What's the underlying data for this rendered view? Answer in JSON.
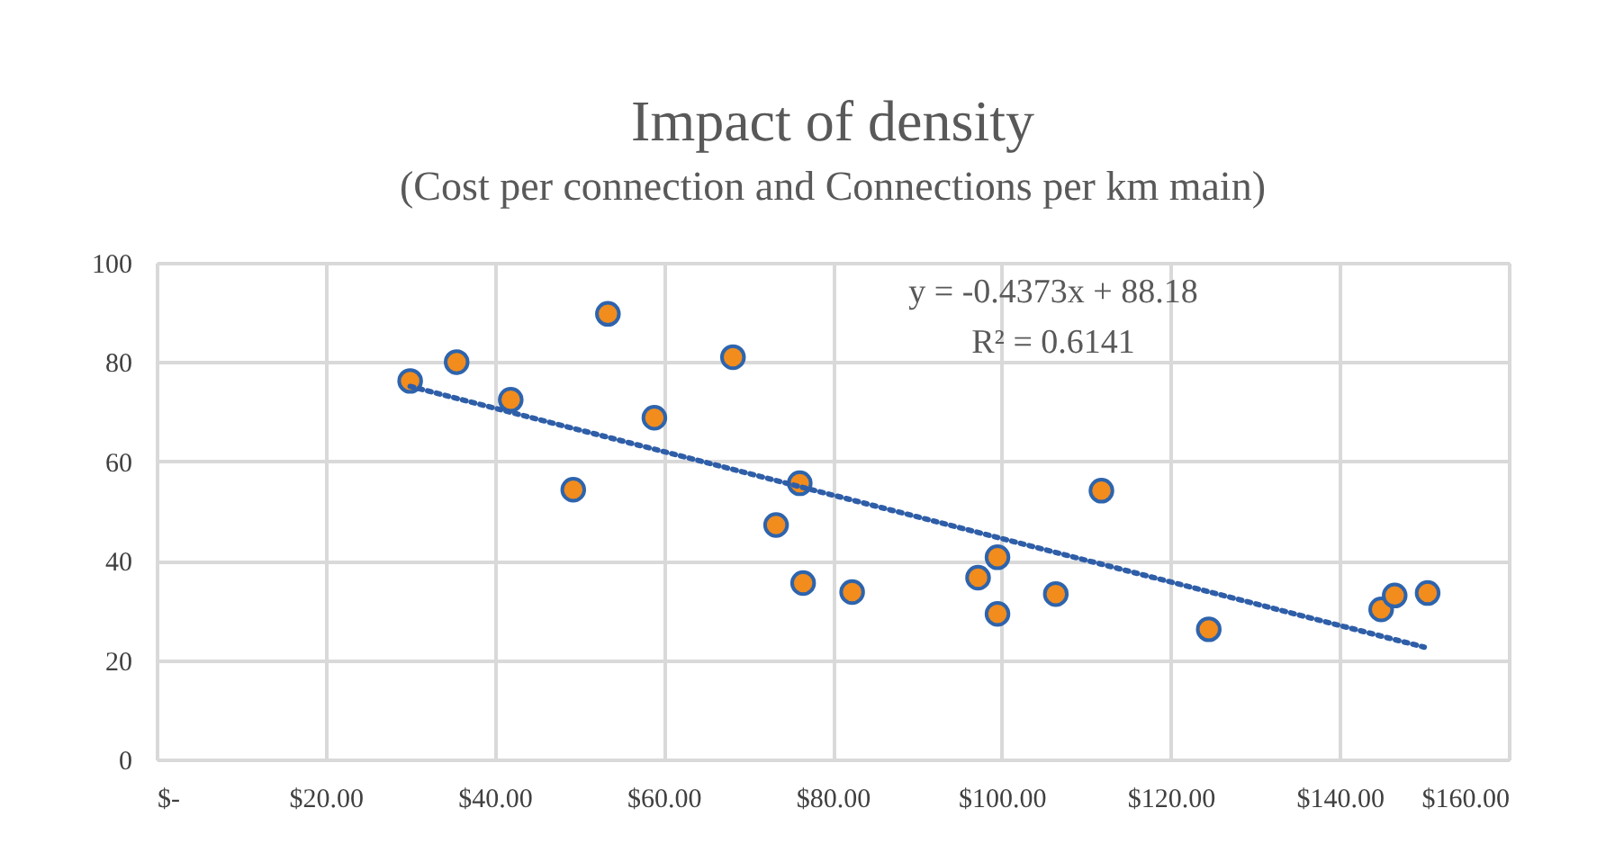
{
  "chart_data": {
    "type": "scatter",
    "title": "Impact of density",
    "subtitle": "(Cost per connection and Connections per km main)",
    "annotations": [
      "y = -0.4373x + 88.18",
      "R² = 0.6141"
    ],
    "xlim": [
      0,
      160
    ],
    "xticks": [
      {
        "value": 0,
        "label": "$-"
      },
      {
        "value": 20,
        "label": "$20.00"
      },
      {
        "value": 40,
        "label": "$40.00"
      },
      {
        "value": 60,
        "label": "$60.00"
      },
      {
        "value": 80,
        "label": "$80.00"
      },
      {
        "value": 100,
        "label": "$100.00"
      },
      {
        "value": 120,
        "label": "$120.00"
      },
      {
        "value": 140,
        "label": "$140.00"
      },
      {
        "value": 160,
        "label": "$160.00"
      }
    ],
    "ylim": [
      0,
      100
    ],
    "yticks": [
      0,
      20,
      40,
      60,
      80,
      100
    ],
    "grid": true,
    "series": [
      {
        "color": "#f28c1c",
        "marker": "circle",
        "x": [
          30.0,
          35.5,
          41.9,
          49.3,
          53.4,
          58.9,
          68.2,
          73.3,
          76.1,
          76.5,
          82.3,
          97.2,
          99.5,
          99.5,
          106.4,
          111.8,
          124.5,
          144.9,
          146.5,
          150.4
        ],
        "values": [
          76.2,
          80.0,
          72.4,
          54.3,
          89.7,
          68.8,
          81.0,
          47.2,
          55.6,
          35.5,
          33.7,
          36.6,
          40.7,
          29.3,
          33.3,
          54.1,
          26.2,
          30.2,
          33.0,
          33.5
        ]
      },
      {
        "type": "line",
        "color": "#2f5ea8",
        "marker": "none",
        "line_style": "dotted",
        "x": [
          30,
          150
        ],
        "values": [
          75.1,
          22.6
        ]
      }
    ]
  }
}
